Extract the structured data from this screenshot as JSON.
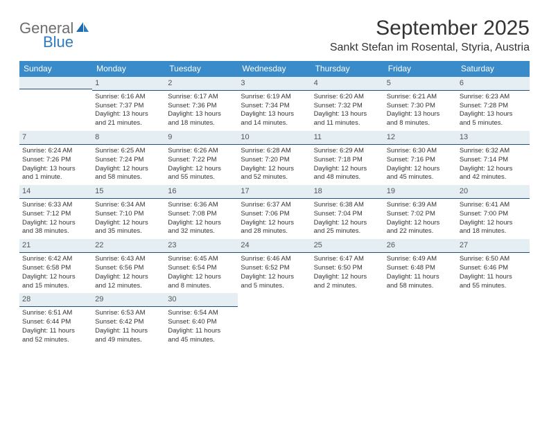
{
  "logo": {
    "general": "General",
    "blue": "Blue"
  },
  "title": "September 2025",
  "location": "Sankt Stefan im Rosental, Styria, Austria",
  "day_names": [
    "Sunday",
    "Monday",
    "Tuesday",
    "Wednesday",
    "Thursday",
    "Friday",
    "Saturday"
  ],
  "colors": {
    "header_bg": "#3a8bc9",
    "header_fg": "#ffffff",
    "date_bar_bg": "#e5eef3",
    "date_bar_border": "#1f4e79",
    "text": "#333333"
  },
  "weeks": [
    [
      {
        "date": "",
        "lines": []
      },
      {
        "date": "1",
        "lines": [
          "Sunrise: 6:16 AM",
          "Sunset: 7:37 PM",
          "Daylight: 13 hours",
          "and 21 minutes."
        ]
      },
      {
        "date": "2",
        "lines": [
          "Sunrise: 6:17 AM",
          "Sunset: 7:36 PM",
          "Daylight: 13 hours",
          "and 18 minutes."
        ]
      },
      {
        "date": "3",
        "lines": [
          "Sunrise: 6:19 AM",
          "Sunset: 7:34 PM",
          "Daylight: 13 hours",
          "and 14 minutes."
        ]
      },
      {
        "date": "4",
        "lines": [
          "Sunrise: 6:20 AM",
          "Sunset: 7:32 PM",
          "Daylight: 13 hours",
          "and 11 minutes."
        ]
      },
      {
        "date": "5",
        "lines": [
          "Sunrise: 6:21 AM",
          "Sunset: 7:30 PM",
          "Daylight: 13 hours",
          "and 8 minutes."
        ]
      },
      {
        "date": "6",
        "lines": [
          "Sunrise: 6:23 AM",
          "Sunset: 7:28 PM",
          "Daylight: 13 hours",
          "and 5 minutes."
        ]
      }
    ],
    [
      {
        "date": "7",
        "lines": [
          "Sunrise: 6:24 AM",
          "Sunset: 7:26 PM",
          "Daylight: 13 hours",
          "and 1 minute."
        ]
      },
      {
        "date": "8",
        "lines": [
          "Sunrise: 6:25 AM",
          "Sunset: 7:24 PM",
          "Daylight: 12 hours",
          "and 58 minutes."
        ]
      },
      {
        "date": "9",
        "lines": [
          "Sunrise: 6:26 AM",
          "Sunset: 7:22 PM",
          "Daylight: 12 hours",
          "and 55 minutes."
        ]
      },
      {
        "date": "10",
        "lines": [
          "Sunrise: 6:28 AM",
          "Sunset: 7:20 PM",
          "Daylight: 12 hours",
          "and 52 minutes."
        ]
      },
      {
        "date": "11",
        "lines": [
          "Sunrise: 6:29 AM",
          "Sunset: 7:18 PM",
          "Daylight: 12 hours",
          "and 48 minutes."
        ]
      },
      {
        "date": "12",
        "lines": [
          "Sunrise: 6:30 AM",
          "Sunset: 7:16 PM",
          "Daylight: 12 hours",
          "and 45 minutes."
        ]
      },
      {
        "date": "13",
        "lines": [
          "Sunrise: 6:32 AM",
          "Sunset: 7:14 PM",
          "Daylight: 12 hours",
          "and 42 minutes."
        ]
      }
    ],
    [
      {
        "date": "14",
        "lines": [
          "Sunrise: 6:33 AM",
          "Sunset: 7:12 PM",
          "Daylight: 12 hours",
          "and 38 minutes."
        ]
      },
      {
        "date": "15",
        "lines": [
          "Sunrise: 6:34 AM",
          "Sunset: 7:10 PM",
          "Daylight: 12 hours",
          "and 35 minutes."
        ]
      },
      {
        "date": "16",
        "lines": [
          "Sunrise: 6:36 AM",
          "Sunset: 7:08 PM",
          "Daylight: 12 hours",
          "and 32 minutes."
        ]
      },
      {
        "date": "17",
        "lines": [
          "Sunrise: 6:37 AM",
          "Sunset: 7:06 PM",
          "Daylight: 12 hours",
          "and 28 minutes."
        ]
      },
      {
        "date": "18",
        "lines": [
          "Sunrise: 6:38 AM",
          "Sunset: 7:04 PM",
          "Daylight: 12 hours",
          "and 25 minutes."
        ]
      },
      {
        "date": "19",
        "lines": [
          "Sunrise: 6:39 AM",
          "Sunset: 7:02 PM",
          "Daylight: 12 hours",
          "and 22 minutes."
        ]
      },
      {
        "date": "20",
        "lines": [
          "Sunrise: 6:41 AM",
          "Sunset: 7:00 PM",
          "Daylight: 12 hours",
          "and 18 minutes."
        ]
      }
    ],
    [
      {
        "date": "21",
        "lines": [
          "Sunrise: 6:42 AM",
          "Sunset: 6:58 PM",
          "Daylight: 12 hours",
          "and 15 minutes."
        ]
      },
      {
        "date": "22",
        "lines": [
          "Sunrise: 6:43 AM",
          "Sunset: 6:56 PM",
          "Daylight: 12 hours",
          "and 12 minutes."
        ]
      },
      {
        "date": "23",
        "lines": [
          "Sunrise: 6:45 AM",
          "Sunset: 6:54 PM",
          "Daylight: 12 hours",
          "and 8 minutes."
        ]
      },
      {
        "date": "24",
        "lines": [
          "Sunrise: 6:46 AM",
          "Sunset: 6:52 PM",
          "Daylight: 12 hours",
          "and 5 minutes."
        ]
      },
      {
        "date": "25",
        "lines": [
          "Sunrise: 6:47 AM",
          "Sunset: 6:50 PM",
          "Daylight: 12 hours",
          "and 2 minutes."
        ]
      },
      {
        "date": "26",
        "lines": [
          "Sunrise: 6:49 AM",
          "Sunset: 6:48 PM",
          "Daylight: 11 hours",
          "and 58 minutes."
        ]
      },
      {
        "date": "27",
        "lines": [
          "Sunrise: 6:50 AM",
          "Sunset: 6:46 PM",
          "Daylight: 11 hours",
          "and 55 minutes."
        ]
      }
    ],
    [
      {
        "date": "28",
        "lines": [
          "Sunrise: 6:51 AM",
          "Sunset: 6:44 PM",
          "Daylight: 11 hours",
          "and 52 minutes."
        ]
      },
      {
        "date": "29",
        "lines": [
          "Sunrise: 6:53 AM",
          "Sunset: 6:42 PM",
          "Daylight: 11 hours",
          "and 49 minutes."
        ]
      },
      {
        "date": "30",
        "lines": [
          "Sunrise: 6:54 AM",
          "Sunset: 6:40 PM",
          "Daylight: 11 hours",
          "and 45 minutes."
        ]
      },
      {
        "date": "",
        "lines": []
      },
      {
        "date": "",
        "lines": []
      },
      {
        "date": "",
        "lines": []
      },
      {
        "date": "",
        "lines": []
      }
    ]
  ]
}
